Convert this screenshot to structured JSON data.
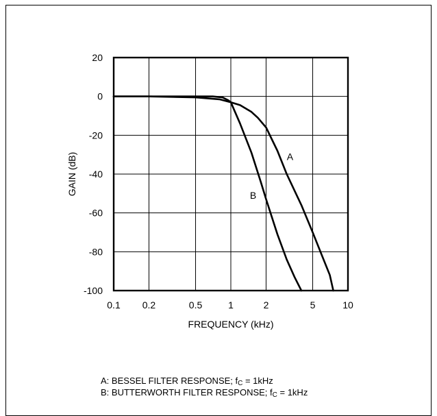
{
  "chart_data": {
    "type": "line",
    "xlabel": "FREQUENCY (kHz)",
    "ylabel": "GAIN (dB)",
    "x_scale": "log",
    "xlim": [
      0.1,
      10
    ],
    "ylim": [
      -100,
      20
    ],
    "x_ticks": [
      0.1,
      0.2,
      0.5,
      1,
      2,
      5,
      10
    ],
    "x_tick_labels": [
      "0.1",
      "0.2",
      "0.5",
      "1",
      "2",
      "5",
      "10"
    ],
    "y_ticks": [
      20,
      0,
      -20,
      -40,
      -60,
      -80,
      -100
    ],
    "y_tick_labels": [
      "20",
      "0",
      "-20",
      "-40",
      "-60",
      "-80",
      "-100"
    ],
    "grid": true,
    "series": [
      {
        "name": "A",
        "x": [
          0.1,
          0.2,
          0.5,
          0.8,
          1,
          1.2,
          1.5,
          1.7,
          2,
          2.5,
          3,
          4,
          5,
          6,
          7,
          7.5
        ],
        "y": [
          0,
          0,
          -0.5,
          -1.5,
          -3,
          -4.5,
          -8,
          -11,
          -16,
          -28,
          -40,
          -56,
          -70,
          -82,
          -92,
          -100
        ]
      },
      {
        "name": "B",
        "x": [
          0.1,
          0.2,
          0.5,
          0.7,
          0.85,
          0.95,
          1,
          1.2,
          1.5,
          1.8,
          2,
          2.5,
          3,
          3.5,
          4
        ],
        "y": [
          0,
          0,
          0,
          0,
          -0.5,
          -2,
          -3,
          -14,
          -29,
          -44,
          -53,
          -71,
          -84,
          -93,
          -100
        ]
      }
    ],
    "annotations": [
      {
        "text": "A",
        "x": 3.2,
        "y": -31
      },
      {
        "text": "B",
        "x": 1.55,
        "y": -51
      }
    ],
    "notes": [
      {
        "prefix": "A: BESSEL FILTER RESPONSE; f",
        "sub": "C",
        "suffix": " = 1kHz"
      },
      {
        "prefix": "B: BUTTERWORTH FILTER RESPONSE; f",
        "sub": "C",
        "suffix": " = 1kHz"
      }
    ],
    "colors": {
      "line": "#000000",
      "grid": "#000000",
      "background": "#ffffff"
    }
  }
}
